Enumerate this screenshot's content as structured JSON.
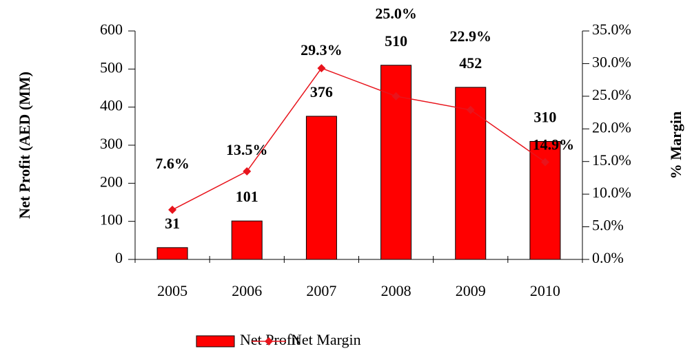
{
  "chart_data": {
    "type": "bar-line",
    "categories": [
      "2005",
      "2006",
      "2007",
      "2008",
      "2009",
      "2010"
    ],
    "y_label": "Net Profit (AED (MM)",
    "y2_label": "% Margin",
    "ylim": [
      0,
      600
    ],
    "yticks": [
      0,
      100,
      200,
      300,
      400,
      500,
      600
    ],
    "y2lim": [
      0,
      35
    ],
    "y2ticks": [
      {
        "value": 0,
        "label": "0.0%"
      },
      {
        "value": 5,
        "label": "5.0%"
      },
      {
        "value": 10,
        "label": "10.0%"
      },
      {
        "value": 15,
        "label": "15.0%"
      },
      {
        "value": 20,
        "label": "20.0%"
      },
      {
        "value": 25,
        "label": "25.0%"
      },
      {
        "value": 30,
        "label": "30.0%"
      },
      {
        "value": 35,
        "label": "35.0%"
      }
    ],
    "series": [
      {
        "name": "Net Profit",
        "type": "bar",
        "color": "#ff0000",
        "values": [
          31,
          101,
          376,
          510,
          452,
          310
        ]
      },
      {
        "name": "Net Margin",
        "type": "line",
        "axis": "y2",
        "color": "#e8141c",
        "values": [
          7.6,
          13.5,
          29.3,
          25.0,
          22.9,
          14.9
        ],
        "value_labels": [
          "7.6%",
          "13.5%",
          "29.3%",
          "25.0%",
          "22.9%",
          "14.9%"
        ]
      }
    ],
    "legend": "bottom"
  }
}
